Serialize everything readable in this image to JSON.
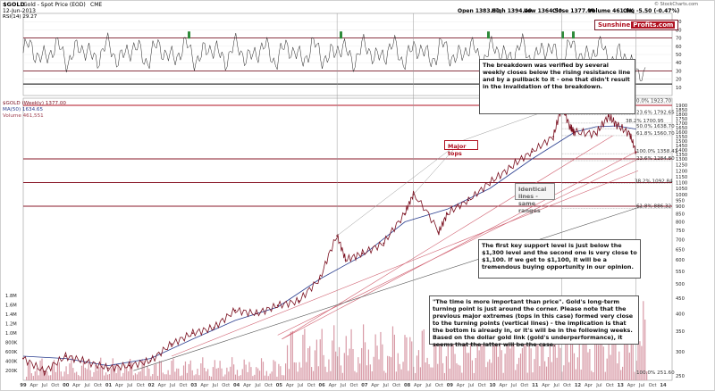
{
  "header": {
    "symbol": "$GOLD",
    "name": "Gold - Spot Price (EOD)",
    "exchange": "CME",
    "date": "12-Jun-2013",
    "open": "Open 1383.00",
    "high": "High 1394.40",
    "low": "Low 1364.50",
    "close": "Close 1377.00",
    "volume": "Volume 461.6K",
    "change": "Chg -5.50 (-0.47%)",
    "copyright": "© StockCharts.com",
    "rsi_label": "RSI(14) 29.27",
    "price_label": "$GOLD (Weekly) 1377.00",
    "ma_label": "MA(50) 1634.65",
    "vol_label": "Volume 461,551"
  },
  "logo": {
    "part1": "Sunshine",
    "part2": "Profits.com"
  },
  "colors": {
    "rsi_band": "#7a1a2a",
    "support": "#8a1a2a",
    "green": "#2e8b3a",
    "bars": "#d89aa6",
    "price": "#7a0f1f",
    "ma": "#2a3e8f"
  },
  "callouts": {
    "breakdown": "The breakdown was verified by several weekly closes below the rising resistance line and by a pullback to it - one that didn't result in the invalidation of the breakdown.",
    "major_tops": "Major tops",
    "identical_lines": "Identical lines - same ranges",
    "support": "The first key support level is just below the $1,300 level and the second one is very close to $1,100. If we get to $1,100, it will be a tremendous buying opportunity in our opinion.",
    "time": "\"The time is more important than price\". Gold's long-term turning point is just around the corner. Please note that the previous major extremes (tops in this case) formed very close to the turning points (vertical lines) - the implication is that the bottom is already in, or it's will be in the following weeks. Based on the dollar gold link (gold's underperformance), it seems that the latter will be the case."
  },
  "fib_labels": [
    "0.0% 1923.70",
    "23.6% 1792.65",
    "38.2% 1700.95",
    "50.0% 1638.70",
    "61.8% 1560.70",
    "100.0% 1358.41",
    "23.6% 1284.80",
    "38.2% 1092.84",
    "61.8% 886.32",
    "100.0% 251.60"
  ],
  "chart_data": {
    "type": "line",
    "title": "$GOLD (Weekly)",
    "x_ticks": [
      "99",
      "Apr",
      "Jul",
      "Oct",
      "00",
      "Apr",
      "Jul",
      "Oct",
      "01",
      "Apr",
      "Jul",
      "Oct",
      "02",
      "Apr",
      "Jul",
      "Oct",
      "03",
      "Apr",
      "Jul",
      "Oct",
      "04",
      "Apr",
      "Jul",
      "Oct",
      "05",
      "Apr",
      "Jul",
      "Oct",
      "06",
      "Apr",
      "Jul",
      "Oct",
      "07",
      "Apr",
      "Jul",
      "Oct",
      "08",
      "Apr",
      "Jul",
      "Oct",
      "09",
      "Apr",
      "Jul",
      "Oct",
      "10",
      "Apr",
      "Jul",
      "Oct",
      "11",
      "Apr",
      "Jul",
      "Oct",
      "12",
      "Apr",
      "Jul",
      "Oct",
      "13",
      "Apr",
      "Jul",
      "Oct",
      "14"
    ],
    "rsi_ticks": [
      "90",
      "80",
      "70",
      "60",
      "50",
      "40",
      "30",
      "20",
      "10"
    ],
    "price_ticks": [
      "1900",
      "1850",
      "1800",
      "1750",
      "1700",
      "1650",
      "1600",
      "1550",
      "1500",
      "1450",
      "1400",
      "1350",
      "1300",
      "1250",
      "1200",
      "1150",
      "1100",
      "1050",
      "1000",
      "950",
      "900",
      "850",
      "800",
      "750",
      "700",
      "650",
      "600",
      "550",
      "500",
      "450",
      "400",
      "350",
      "300",
      "250"
    ],
    "volume_ticks": [
      "1.8M",
      "1.6M",
      "1.4M",
      "1.2M",
      "1.0M",
      "800K",
      "600K",
      "400K",
      "200K"
    ],
    "series": [
      {
        "name": "$GOLD (Weekly)",
        "x": [
          1999.0,
          1999.5,
          2000.0,
          2000.5,
          2001.0,
          2001.5,
          2002.0,
          2002.5,
          2003.0,
          2003.5,
          2004.0,
          2004.5,
          2005.0,
          2005.5,
          2006.0,
          2006.4,
          2006.6,
          2007.0,
          2007.5,
          2008.0,
          2008.2,
          2008.8,
          2009.0,
          2009.5,
          2010.0,
          2010.5,
          2011.0,
          2011.5,
          2011.7,
          2011.9,
          2012.0,
          2012.5,
          2012.8,
          2013.0,
          2013.3,
          2013.45
        ],
        "values": [
          285,
          258,
          290,
          278,
          265,
          270,
          280,
          318,
          345,
          360,
          410,
          400,
          425,
          440,
          520,
          720,
          600,
          630,
          680,
          850,
          1000,
          740,
          850,
          950,
          1100,
          1230,
          1380,
          1550,
          1900,
          1650,
          1600,
          1580,
          1780,
          1680,
          1580,
          1377
        ]
      },
      {
        "name": "MA(50)",
        "x": [
          1999.0,
          2000.0,
          2001.0,
          2002.0,
          2003.0,
          2004.0,
          2005.0,
          2006.0,
          2007.0,
          2008.0,
          2009.0,
          2010.0,
          2011.0,
          2012.0,
          2012.5,
          2013.0,
          2013.45
        ],
        "values": [
          290,
          285,
          270,
          285,
          330,
          380,
          420,
          520,
          620,
          800,
          880,
          1050,
          1300,
          1600,
          1660,
          1670,
          1634
        ]
      }
    ],
    "ylim": [
      250,
      1950
    ]
  }
}
